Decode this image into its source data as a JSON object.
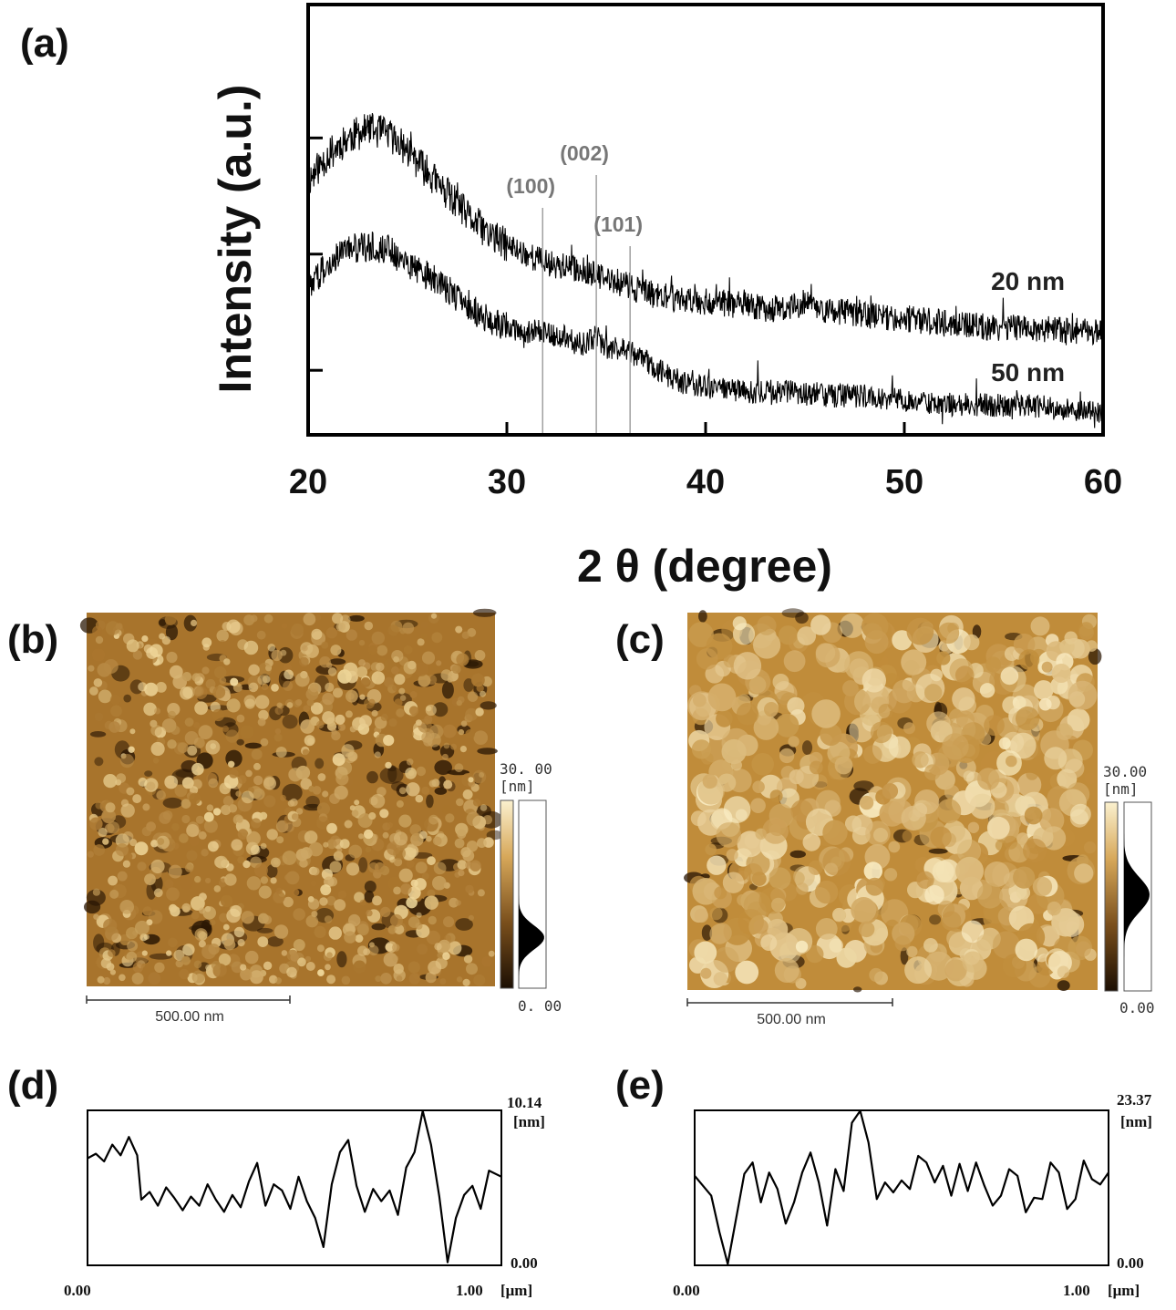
{
  "chart_data": [
    {
      "id": "a",
      "panel_label": "(a)",
      "type": "line",
      "xlabel": "2 θ (degree)",
      "ylabel": "Intensity (a.u.)",
      "xlim": [
        20,
        60
      ],
      "xticks": [
        "20",
        "30",
        "40",
        "50",
        "60"
      ],
      "ylim": [
        0,
        100
      ],
      "y_ticks_unlabeled": [
        15,
        42,
        69
      ],
      "series": [
        {
          "name": "20 nm",
          "x": [
            20,
            21,
            22,
            23,
            24,
            25,
            26,
            27,
            28,
            29,
            30,
            31,
            32,
            33,
            34,
            35,
            36,
            37,
            38,
            40,
            42,
            44,
            45,
            46,
            48,
            50,
            52,
            54,
            56,
            58,
            60
          ],
          "y": [
            59,
            65,
            69,
            71,
            70,
            66,
            61,
            56,
            51,
            47,
            44,
            42,
            40,
            39,
            38,
            36,
            35,
            33,
            32,
            31,
            30,
            29,
            31,
            29,
            28,
            27,
            26,
            25,
            25,
            24,
            24
          ]
        },
        {
          "name": "50 nm",
          "x": [
            20,
            21,
            22,
            23,
            24,
            25,
            26,
            27,
            28,
            29,
            30,
            31,
            32,
            33,
            34,
            34.5,
            35,
            36,
            37,
            38,
            39,
            40,
            42,
            44,
            46,
            48,
            50,
            52,
            54,
            56,
            58,
            60
          ],
          "y": [
            34,
            40,
            43,
            44,
            43,
            40,
            37,
            34,
            30,
            27,
            25,
            24,
            24,
            22,
            21,
            23,
            20,
            20,
            17,
            14,
            12,
            11,
            10,
            10,
            9,
            9,
            8,
            7,
            7,
            7,
            6,
            5
          ]
        }
      ],
      "reference_lines": [
        {
          "label": "(100)",
          "x": 31.8
        },
        {
          "label": "(002)",
          "x": 34.5
        },
        {
          "label": "(101)",
          "x": 36.2
        }
      ]
    },
    {
      "id": "d",
      "panel_label": "(d)",
      "type": "line",
      "xlim": [
        0,
        1.0
      ],
      "ylim": [
        0,
        10.14
      ],
      "x_min_label": "0.00",
      "x_max_label": "1.00",
      "x_unit": "[μm]",
      "y_min_label": "0.00",
      "y_max_label": "10.14",
      "y_unit": "[nm]",
      "series": [
        {
          "name": "height profile",
          "x": [
            0.0,
            0.02,
            0.04,
            0.06,
            0.08,
            0.1,
            0.12,
            0.13,
            0.15,
            0.17,
            0.19,
            0.21,
            0.23,
            0.25,
            0.27,
            0.29,
            0.31,
            0.33,
            0.35,
            0.37,
            0.39,
            0.41,
            0.43,
            0.45,
            0.47,
            0.49,
            0.51,
            0.53,
            0.55,
            0.57,
            0.59,
            0.61,
            0.63,
            0.65,
            0.67,
            0.69,
            0.71,
            0.73,
            0.75,
            0.77,
            0.79,
            0.81,
            0.83,
            0.85,
            0.87,
            0.89,
            0.91,
            0.93,
            0.95,
            0.97,
            1.0
          ],
          "y": [
            7.0,
            7.3,
            6.8,
            7.9,
            7.2,
            8.4,
            7.2,
            4.3,
            4.8,
            3.9,
            5.1,
            4.4,
            3.6,
            4.5,
            3.9,
            5.3,
            4.3,
            3.5,
            4.6,
            3.8,
            5.5,
            6.7,
            3.9,
            5.3,
            4.9,
            3.7,
            5.8,
            4.2,
            3.1,
            1.2,
            5.3,
            7.4,
            8.2,
            5.2,
            3.5,
            5.0,
            4.2,
            4.9,
            3.3,
            6.4,
            7.4,
            10.1,
            7.9,
            4.5,
            0.2,
            3.1,
            4.6,
            5.2,
            3.7,
            6.2,
            5.8
          ]
        }
      ]
    },
    {
      "id": "e",
      "panel_label": "(e)",
      "type": "line",
      "xlim": [
        0,
        1.0
      ],
      "ylim": [
        0,
        23.37
      ],
      "x_min_label": "0.00",
      "x_max_label": "1.00",
      "x_unit": "[μm]",
      "y_min_label": "0.00",
      "y_max_label": "23.37",
      "y_unit": "[nm]",
      "series": [
        {
          "name": "height profile",
          "x": [
            0.0,
            0.02,
            0.04,
            0.06,
            0.08,
            0.1,
            0.12,
            0.14,
            0.16,
            0.18,
            0.2,
            0.22,
            0.24,
            0.26,
            0.28,
            0.3,
            0.32,
            0.34,
            0.36,
            0.38,
            0.4,
            0.42,
            0.44,
            0.46,
            0.48,
            0.5,
            0.52,
            0.54,
            0.56,
            0.58,
            0.6,
            0.62,
            0.64,
            0.66,
            0.68,
            0.7,
            0.72,
            0.74,
            0.76,
            0.78,
            0.8,
            0.82,
            0.84,
            0.86,
            0.88,
            0.9,
            0.92,
            0.94,
            0.96,
            0.98,
            1.0
          ],
          "y": [
            13.5,
            12.0,
            10.5,
            5.0,
            0.2,
            7.0,
            13.8,
            15.5,
            9.5,
            14.0,
            11.5,
            6.3,
            9.5,
            14.0,
            17.0,
            12.5,
            6.0,
            14.5,
            11.2,
            21.5,
            23.3,
            18.5,
            10.0,
            12.5,
            11.0,
            12.8,
            11.5,
            16.5,
            15.5,
            12.5,
            15.0,
            10.5,
            15.3,
            11.2,
            15.5,
            12.0,
            9.0,
            10.5,
            14.5,
            13.5,
            8.0,
            10.2,
            10.0,
            15.5,
            14.0,
            8.5,
            10.0,
            15.8,
            13.0,
            12.2,
            14.0
          ]
        }
      ]
    }
  ],
  "afm": {
    "b": {
      "panel_label": "(b)",
      "scale_bar_label": "500.00 nm",
      "colorbar_max": "30. 00",
      "colorbar_unit": "[nm]",
      "colorbar_min": "0. 00",
      "colors": {
        "dark": "#2a1704",
        "mid": "#a8742c",
        "light": "#f3dca0"
      }
    },
    "c": {
      "panel_label": "(c)",
      "scale_bar_label": "500.00 nm",
      "colorbar_max": "30.00",
      "colorbar_unit": "[nm]",
      "colorbar_min": "0.00",
      "colors": {
        "dark": "#2a1704",
        "mid": "#c08c3a",
        "light": "#fbefc7"
      }
    }
  }
}
